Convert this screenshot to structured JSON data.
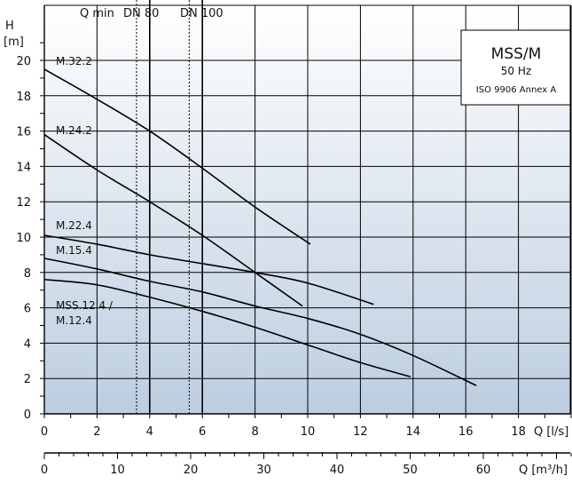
{
  "chart_data": {
    "type": "line",
    "y_axis": {
      "label_top": "H",
      "label_unit": "[m]",
      "range": [
        0,
        21
      ],
      "ticks": [
        0,
        2,
        4,
        6,
        8,
        10,
        12,
        14,
        16,
        18,
        20
      ]
    },
    "x_axis": {
      "label": "Q [l/s]",
      "range": [
        0,
        20
      ],
      "ticks": [
        0,
        2,
        4,
        6,
        8,
        10,
        12,
        14,
        16,
        18
      ]
    },
    "x_axis_secondary": {
      "label": "Q [m³/h]",
      "range": [
        0,
        72
      ],
      "ticks": [
        0,
        10,
        20,
        30,
        40,
        50,
        60
      ]
    },
    "grid": true,
    "markers": [
      {
        "label": "Q min",
        "x": 3.5,
        "style": "dotted"
      },
      {
        "label": "DN 80",
        "x": 4.0,
        "style": "solid"
      },
      {
        "label": "",
        "x": 5.5,
        "style": "dotted"
      },
      {
        "label": "DN 100",
        "x": 6.0,
        "style": "solid"
      }
    ],
    "legend_box": {
      "title": "MSS/M",
      "line2": "50 Hz",
      "line3": "ISO  9906 Annex A",
      "placement": "top-right"
    },
    "series": [
      {
        "name": "M.32.2",
        "points": [
          [
            0,
            19.5
          ],
          [
            2,
            17.8
          ],
          [
            4,
            16.0
          ],
          [
            6,
            13.9
          ],
          [
            8,
            11.7
          ],
          [
            10.1,
            9.6
          ]
        ]
      },
      {
        "name": "M.24.2",
        "points": [
          [
            0,
            15.8
          ],
          [
            2,
            13.8
          ],
          [
            4,
            12.0
          ],
          [
            6,
            10.1
          ],
          [
            8,
            8.0
          ],
          [
            9.8,
            6.1
          ]
        ]
      },
      {
        "name": "M.22.4",
        "points": [
          [
            0,
            10.1
          ],
          [
            2,
            9.6
          ],
          [
            4,
            9.0
          ],
          [
            6,
            8.5
          ],
          [
            8,
            8.0
          ],
          [
            10,
            7.4
          ],
          [
            12.5,
            6.2
          ]
        ]
      },
      {
        "name": "M.15.4",
        "points": [
          [
            0,
            8.8
          ],
          [
            2,
            8.2
          ],
          [
            4,
            7.5
          ],
          [
            6,
            6.9
          ],
          [
            8,
            6.1
          ],
          [
            10,
            5.4
          ],
          [
            12,
            4.5
          ],
          [
            14,
            3.3
          ],
          [
            16.4,
            1.6
          ]
        ]
      },
      {
        "name": "MSS.12.4 / M.12.4",
        "label_lines": [
          "MSS.12.4 /",
          "M.12.4"
        ],
        "points": [
          [
            0,
            7.6
          ],
          [
            2,
            7.3
          ],
          [
            4,
            6.6
          ],
          [
            6,
            5.8
          ],
          [
            8,
            4.9
          ],
          [
            10,
            3.9
          ],
          [
            12,
            2.9
          ],
          [
            13.9,
            2.1
          ]
        ]
      }
    ]
  }
}
